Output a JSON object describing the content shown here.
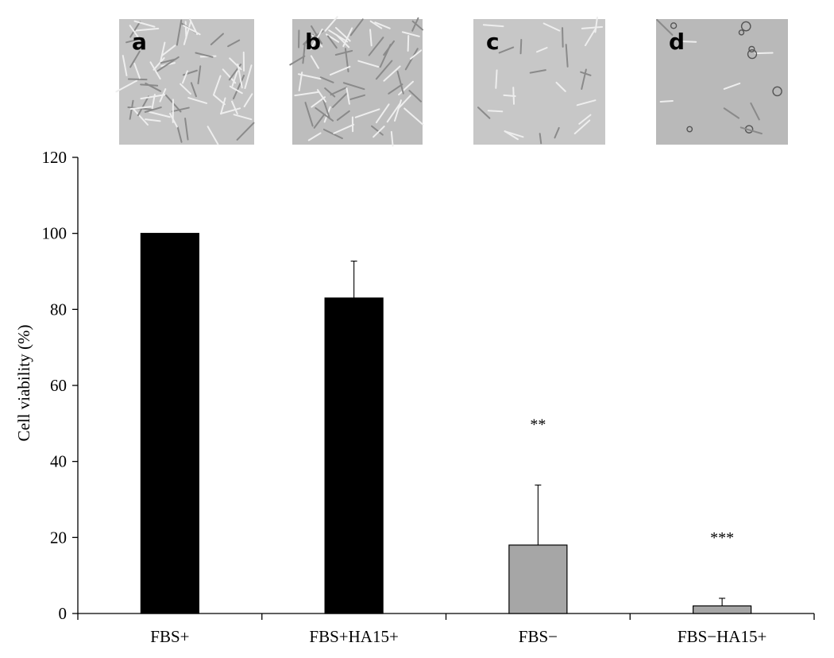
{
  "chart_data": {
    "type": "bar",
    "categories": [
      "FBS+",
      "FBS+HA15+",
      "FBS−",
      "FBS−HA15+"
    ],
    "values": [
      100,
      83,
      18,
      2
    ],
    "errors": [
      0,
      9.7,
      15.8,
      2
    ],
    "annotations": [
      "",
      "",
      "**",
      "***"
    ],
    "bar_colors": [
      "#000000",
      "#000000",
      "#a6a6a6",
      "#a6a6a6"
    ],
    "ylabel": "Cell viability (%)",
    "xlabel": "",
    "ylim": [
      0,
      120
    ],
    "yticks": [
      0,
      20,
      40,
      60,
      80,
      100,
      120
    ],
    "grid": false,
    "legend": "none"
  },
  "micrographs": [
    {
      "label": "a",
      "tone": "#c4c4c4"
    },
    {
      "label": "b",
      "tone": "#bdbdbd"
    },
    {
      "label": "c",
      "tone": "#c7c7c7"
    },
    {
      "label": "d",
      "tone": "#b9b9b9"
    }
  ]
}
